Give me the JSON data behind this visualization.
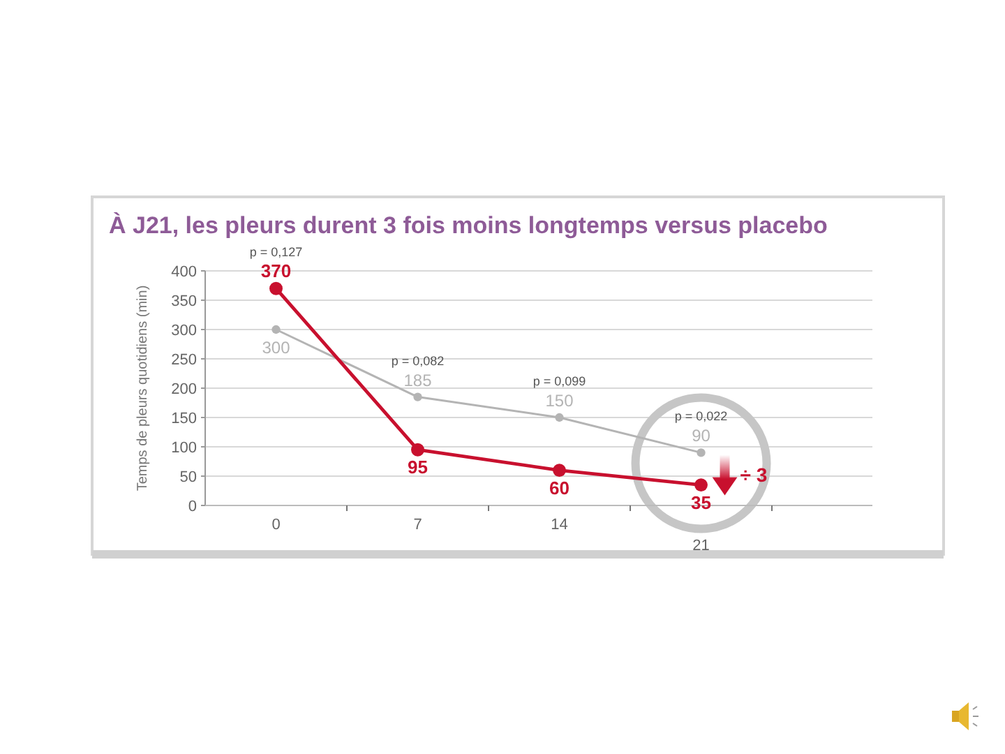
{
  "chart_data": {
    "type": "line",
    "title": "À J21, les pleurs durent 3 fois moins longtemps versus placebo",
    "ylabel": "Temps de pleurs quotidiens (min)",
    "categories": [
      "0",
      "7",
      "14",
      "21"
    ],
    "series": [
      {
        "color": "#c8102e",
        "values": [
          370,
          95,
          60,
          35
        ]
      },
      {
        "color": "#b4b4b4",
        "values": [
          300,
          185,
          150,
          90
        ]
      }
    ],
    "ylim": [
      0,
      400
    ],
    "yticks": [
      0,
      50,
      100,
      150,
      200,
      250,
      300,
      350,
      400
    ],
    "grid": "y",
    "marker": "circle",
    "line_style": "solid",
    "data_labels": true,
    "annotations": [
      "p = 0,127",
      "p = 0,082",
      "p = 0,099",
      "p = 0,022",
      "÷ 3"
    ]
  }
}
